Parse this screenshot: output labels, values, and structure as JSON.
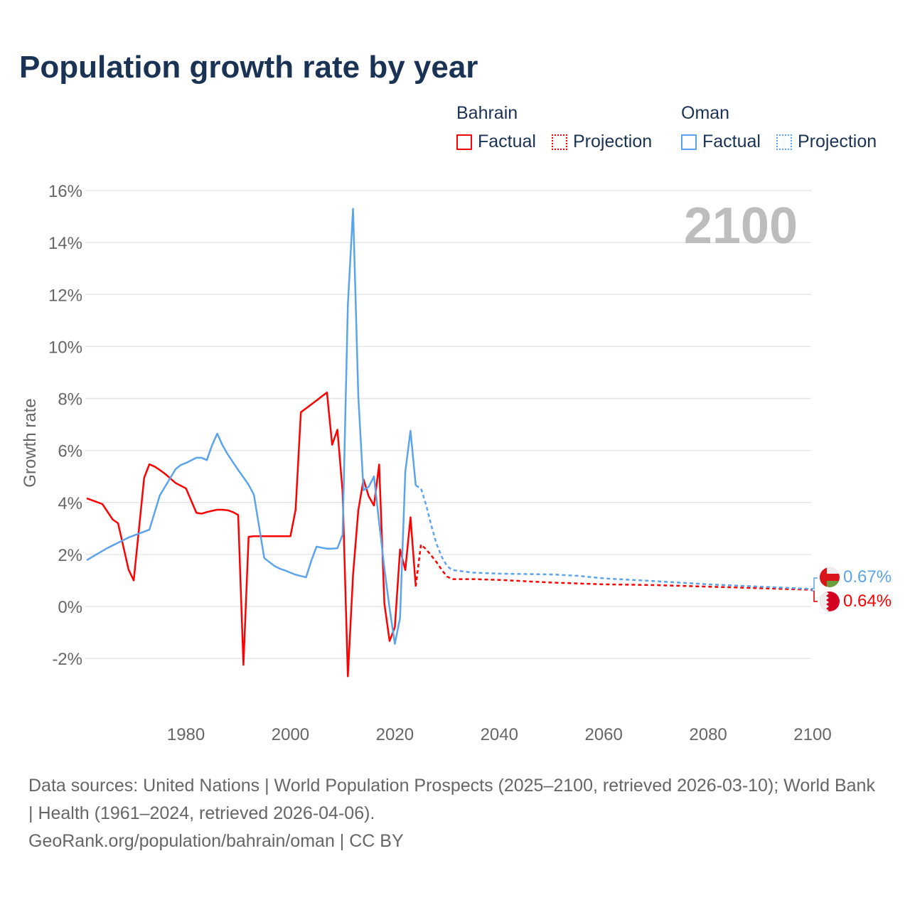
{
  "title": "Population growth rate by year",
  "legend": {
    "groups": [
      {
        "name": "Bahrain",
        "factual": "Factual",
        "projection": "Projection",
        "color": "#ff0000"
      },
      {
        "name": "Oman",
        "factual": "Factual",
        "projection": "Projection",
        "color": "#5ba4ec"
      }
    ]
  },
  "year_label": "2100",
  "end_labels": {
    "oman": "0.67%",
    "bahrain": "0.64%"
  },
  "footer": {
    "line1": "Data sources: United Nations | World Population Prospects (2025–2100, retrieved 2026-03-10); World Bank | Health (1961–2024, retrieved 2026-04-06).",
    "line2": "GeoRank.org/population/bahrain/oman | CC BY"
  },
  "chart_data": {
    "type": "line",
    "title": "Population growth rate by year",
    "xlabel": "",
    "ylabel": "Growth rate",
    "xlim": [
      1961,
      2100
    ],
    "ylim": [
      -4,
      16
    ],
    "xticks": [
      1980,
      2000,
      2020,
      2040,
      2060,
      2080,
      2100
    ],
    "xtick_labels": [
      "1980",
      "2000",
      "2020",
      "2040",
      "2060",
      "2080",
      "2100"
    ],
    "yticks": [
      -2,
      0,
      2,
      4,
      6,
      8,
      10,
      12,
      14,
      16
    ],
    "ytick_labels": [
      "-2%",
      "0%",
      "2%",
      "4%",
      "6%",
      "8%",
      "10%",
      "12%",
      "14%",
      "16%"
    ],
    "grid": true,
    "legend_position": "top-right",
    "series": [
      {
        "name": "Bahrain Factual",
        "color": "#ff0000",
        "style": "solid",
        "x": [
          1961,
          1964,
          1966,
          1967,
          1969,
          1970,
          1972,
          1973,
          1974,
          1975,
          1976,
          1977,
          1978,
          1980,
          1982,
          1983,
          1984,
          1985,
          1986,
          1987,
          1988,
          1989,
          1990,
          1991,
          1992,
          1993,
          1994,
          1995,
          1996,
          1997,
          1998,
          1999,
          2000,
          2001,
          2002,
          2003,
          2004,
          2005,
          2006,
          2007,
          2008,
          2009,
          2010,
          2011,
          2012,
          2013,
          2014,
          2015,
          2016,
          2017,
          2018,
          2019,
          2020,
          2021,
          2022,
          2023,
          2024
        ],
        "y": [
          4.16,
          3.94,
          3.34,
          3.2,
          1.42,
          1.0,
          4.95,
          5.47,
          5.38,
          5.25,
          5.1,
          4.93,
          4.75,
          4.54,
          3.6,
          3.57,
          3.63,
          3.68,
          3.72,
          3.72,
          3.7,
          3.63,
          3.52,
          -2.25,
          2.68,
          2.7,
          2.7,
          2.7,
          2.7,
          2.7,
          2.7,
          2.7,
          2.7,
          3.72,
          7.47,
          7.62,
          7.77,
          7.92,
          8.08,
          8.23,
          6.22,
          6.8,
          4.41,
          -2.69,
          1.22,
          3.7,
          4.89,
          4.24,
          3.88,
          5.46,
          0.1,
          -1.33,
          -0.8,
          2.19,
          1.4,
          3.43,
          0.77
        ]
      },
      {
        "name": "Bahrain Projection",
        "color": "#ff0000",
        "style": "dotted",
        "x": [
          2024,
          2025,
          2026,
          2027,
          2028,
          2029,
          2030,
          2031,
          2035,
          2040,
          2050,
          2060,
          2070,
          2080,
          2090,
          2100
        ],
        "y": [
          0.77,
          2.38,
          2.2,
          1.95,
          1.7,
          1.4,
          1.15,
          1.05,
          1.05,
          1.02,
          0.92,
          0.85,
          0.82,
          0.76,
          0.7,
          0.64
        ]
      },
      {
        "name": "Oman Factual",
        "color": "#5ba4ec",
        "style": "solid",
        "x": [
          1961,
          1965,
          1969,
          1973,
          1975,
          1978,
          1979,
          1980,
          1981,
          1982,
          1983,
          1984,
          1985,
          1986,
          1987,
          1988,
          1989,
          1990,
          1991,
          1992,
          1993,
          1995,
          1996,
          1997,
          1998,
          1999,
          2000,
          2001,
          2002,
          2003,
          2004,
          2005,
          2006,
          2007,
          2008,
          2009,
          2010,
          2011,
          2012,
          2013,
          2014,
          2015,
          2016,
          2017,
          2018,
          2019,
          2020,
          2021,
          2022,
          2023,
          2024
        ],
        "y": [
          1.78,
          2.25,
          2.65,
          2.95,
          4.27,
          5.28,
          5.44,
          5.52,
          5.62,
          5.72,
          5.72,
          5.63,
          6.2,
          6.65,
          6.2,
          5.85,
          5.55,
          5.25,
          4.97,
          4.68,
          4.3,
          1.86,
          1.7,
          1.55,
          1.45,
          1.38,
          1.3,
          1.22,
          1.17,
          1.12,
          1.75,
          2.3,
          2.26,
          2.22,
          2.22,
          2.24,
          2.76,
          11.6,
          15.3,
          8.08,
          4.47,
          4.6,
          5.0,
          3.23,
          1.46,
          -0.08,
          -1.44,
          -0.44,
          5.18,
          6.76,
          4.65
        ]
      },
      {
        "name": "Oman Projection",
        "color": "#5ba4ec",
        "style": "dotted",
        "x": [
          2024,
          2025,
          2026,
          2027,
          2028,
          2029,
          2030,
          2031,
          2035,
          2040,
          2050,
          2055,
          2060,
          2070,
          2080,
          2090,
          2100
        ],
        "y": [
          4.65,
          4.55,
          3.9,
          3.1,
          2.4,
          1.9,
          1.55,
          1.4,
          1.3,
          1.26,
          1.23,
          1.18,
          1.08,
          0.97,
          0.85,
          0.76,
          0.67
        ]
      }
    ]
  }
}
